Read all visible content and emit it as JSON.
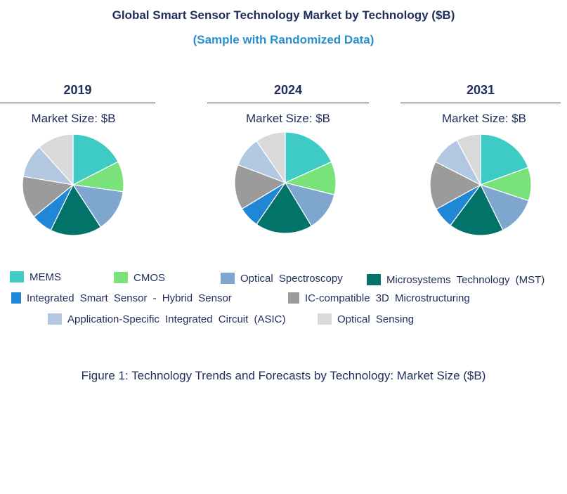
{
  "title": "Global Smart Sensor Technology Market by Technology ($B)",
  "subtitle": "(Sample with Randomized Data)",
  "caption": "Figure 1: Technology Trends and Forecasts by Technology: Market Size ($B)",
  "chart_data": {
    "type": "pie",
    "categories": [
      "MEMS",
      "CMOS",
      "Optical Spectroscopy",
      "Microsystems Technology (MST)",
      "Integrated Smart Sensor - Hybrid Sensor",
      "IC-compatible 3D Microstructuring",
      "Application-Specific Integrated Circuit (ASIC)",
      "Optical Sensing"
    ],
    "colors": [
      "#3ecbc6",
      "#7ae27a",
      "#7fa6cf",
      "#017369",
      "#1f87d6",
      "#9b9b9b",
      "#b2c8e0",
      "#d9d9d9"
    ],
    "charts": [
      {
        "year": "2019",
        "label": "Market Size: $B",
        "values": [
          18,
          10,
          14,
          17,
          7,
          14,
          11,
          12
        ]
      },
      {
        "year": "2024",
        "label": "Market Size: $B",
        "values": [
          19,
          11,
          13,
          19,
          7,
          15,
          10,
          10
        ]
      },
      {
        "year": "2031",
        "label": "Market Size: $B",
        "values": [
          20,
          11,
          13,
          18,
          7,
          16,
          10,
          8
        ]
      }
    ]
  }
}
